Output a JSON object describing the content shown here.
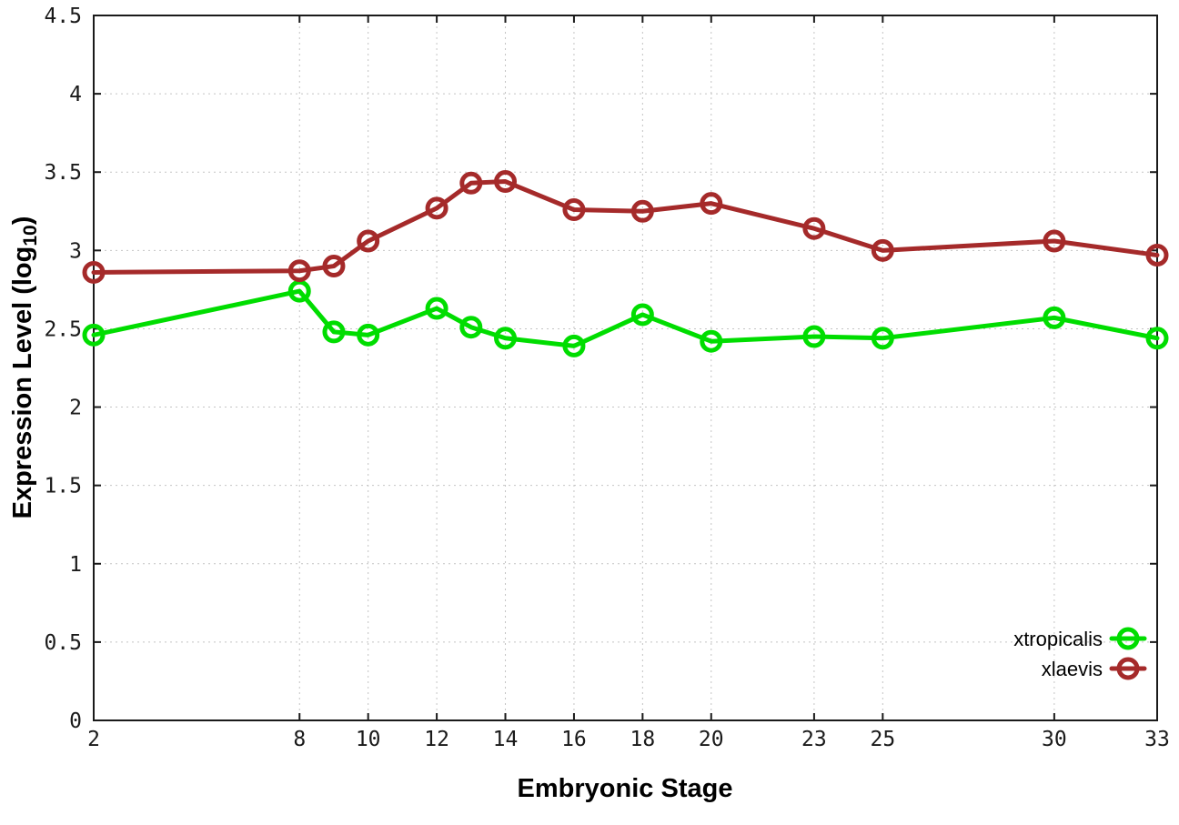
{
  "chart_data": {
    "type": "line",
    "title": "",
    "xlabel": "Embryonic Stage",
    "ylabel": {
      "main": "Expression Level (log",
      "sub": "10",
      "close": ")"
    },
    "xlim": [
      2,
      33
    ],
    "ylim": [
      0,
      4.5
    ],
    "xticks": [
      2,
      8,
      10,
      12,
      14,
      16,
      18,
      20,
      23,
      25,
      30,
      33
    ],
    "yticks": [
      0,
      0.5,
      1,
      1.5,
      2,
      2.5,
      3,
      3.5,
      4,
      4.5
    ],
    "ytick_labels": [
      "0",
      "0.5",
      "1",
      "1.5",
      "2",
      "2.5",
      "3",
      "3.5",
      "4",
      "4.5"
    ],
    "grid": true,
    "legend_position": "bottom-right-inside",
    "marker": "open-circle",
    "x": [
      2,
      8,
      9,
      10,
      12,
      13,
      14,
      16,
      18,
      20,
      23,
      25,
      30,
      33
    ],
    "series": [
      {
        "name": "xtropicalis",
        "color": "#00dd00",
        "values": [
          2.46,
          2.74,
          2.48,
          2.46,
          2.63,
          2.51,
          2.44,
          2.39,
          2.59,
          2.42,
          2.45,
          2.44,
          2.57,
          2.44
        ]
      },
      {
        "name": "xlaevis",
        "color": "#a52a2a",
        "values": [
          2.86,
          2.87,
          2.9,
          3.06,
          3.27,
          3.43,
          3.44,
          3.26,
          3.25,
          3.3,
          3.14,
          3.0,
          3.06,
          2.97
        ]
      }
    ],
    "colors": {
      "grid": "#c4c4c4",
      "border": "#1a1a1a",
      "text": "#1a1a1a",
      "background": "#ffffff"
    }
  }
}
